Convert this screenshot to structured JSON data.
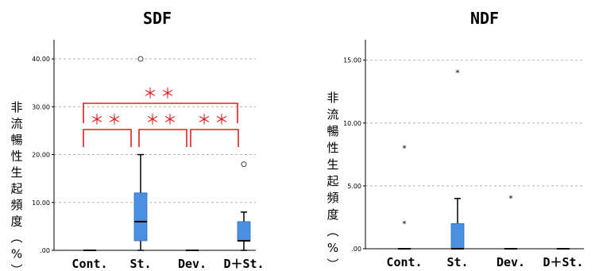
{
  "chart_data": [
    {
      "type": "box",
      "title": "SDF",
      "ylabel": "非流暢性生起頻度（%）",
      "ylim": [
        0,
        45
      ],
      "yticks": [
        0,
        10,
        20,
        30,
        40
      ],
      "ytick_labels": [
        ".00",
        "10.00",
        "20.00",
        "30.00",
        "40.00"
      ],
      "grid": true,
      "categories": [
        "Cont.",
        "St.",
        "Dev.",
        "D＋St."
      ],
      "boxes": [
        {
          "q1": 0,
          "median": 0,
          "q3": 0,
          "whisker_low": 0,
          "whisker_high": 0
        },
        {
          "q1": 2,
          "median": 6,
          "q3": 12,
          "whisker_low": 0,
          "whisker_high": 20
        },
        {
          "q1": 0,
          "median": 0,
          "q3": 0,
          "whisker_low": 0,
          "whisker_high": 0
        },
        {
          "q1": 2,
          "median": 2,
          "q3": 6,
          "whisker_low": 0,
          "whisker_high": 8
        }
      ],
      "outliers": [
        {
          "category": "St.",
          "value": 40,
          "marker": "circle"
        },
        {
          "category": "D＋St.",
          "value": 18,
          "marker": "circle"
        }
      ],
      "significance": [
        {
          "from": "Cont.",
          "to": "St.",
          "label": "＊＊"
        },
        {
          "from": "St.",
          "to": "Dev.",
          "label": "＊＊"
        },
        {
          "from": "Dev.",
          "to": "D＋St.",
          "label": "＊＊"
        },
        {
          "from": "Cont.",
          "to": "D＋St.",
          "label": "＊＊"
        }
      ]
    },
    {
      "type": "box",
      "title": "NDF",
      "ylabel": "非流暢性生起頻度（%）",
      "ylim": [
        0,
        16.5
      ],
      "yticks": [
        0,
        5,
        10,
        15
      ],
      "ytick_labels": [
        ".00",
        "5.00",
        "10.00",
        "15.00"
      ],
      "grid": true,
      "categories": [
        "Cont.",
        "St.",
        "Dev.",
        "D＋St."
      ],
      "boxes": [
        {
          "q1": 0,
          "median": 0,
          "q3": 0,
          "whisker_low": 0,
          "whisker_high": 0
        },
        {
          "q1": 0,
          "median": 0,
          "q3": 2,
          "whisker_low": 0,
          "whisker_high": 4
        },
        {
          "q1": 0,
          "median": 0,
          "q3": 0,
          "whisker_low": 0,
          "whisker_high": 0
        },
        {
          "q1": 0,
          "median": 0,
          "q3": 0,
          "whisker_low": 0,
          "whisker_high": 0
        }
      ],
      "outliers": [
        {
          "category": "Cont.",
          "value": 8,
          "marker": "star"
        },
        {
          "category": "Cont.",
          "value": 2,
          "marker": "star"
        },
        {
          "category": "St.",
          "value": 14,
          "marker": "star"
        },
        {
          "category": "Dev.",
          "value": 4,
          "marker": "star"
        }
      ],
      "significance": []
    }
  ],
  "colors": {
    "box_fill": "#4a90e2",
    "significance": "#e02020",
    "grid": "#b5b5b5"
  }
}
